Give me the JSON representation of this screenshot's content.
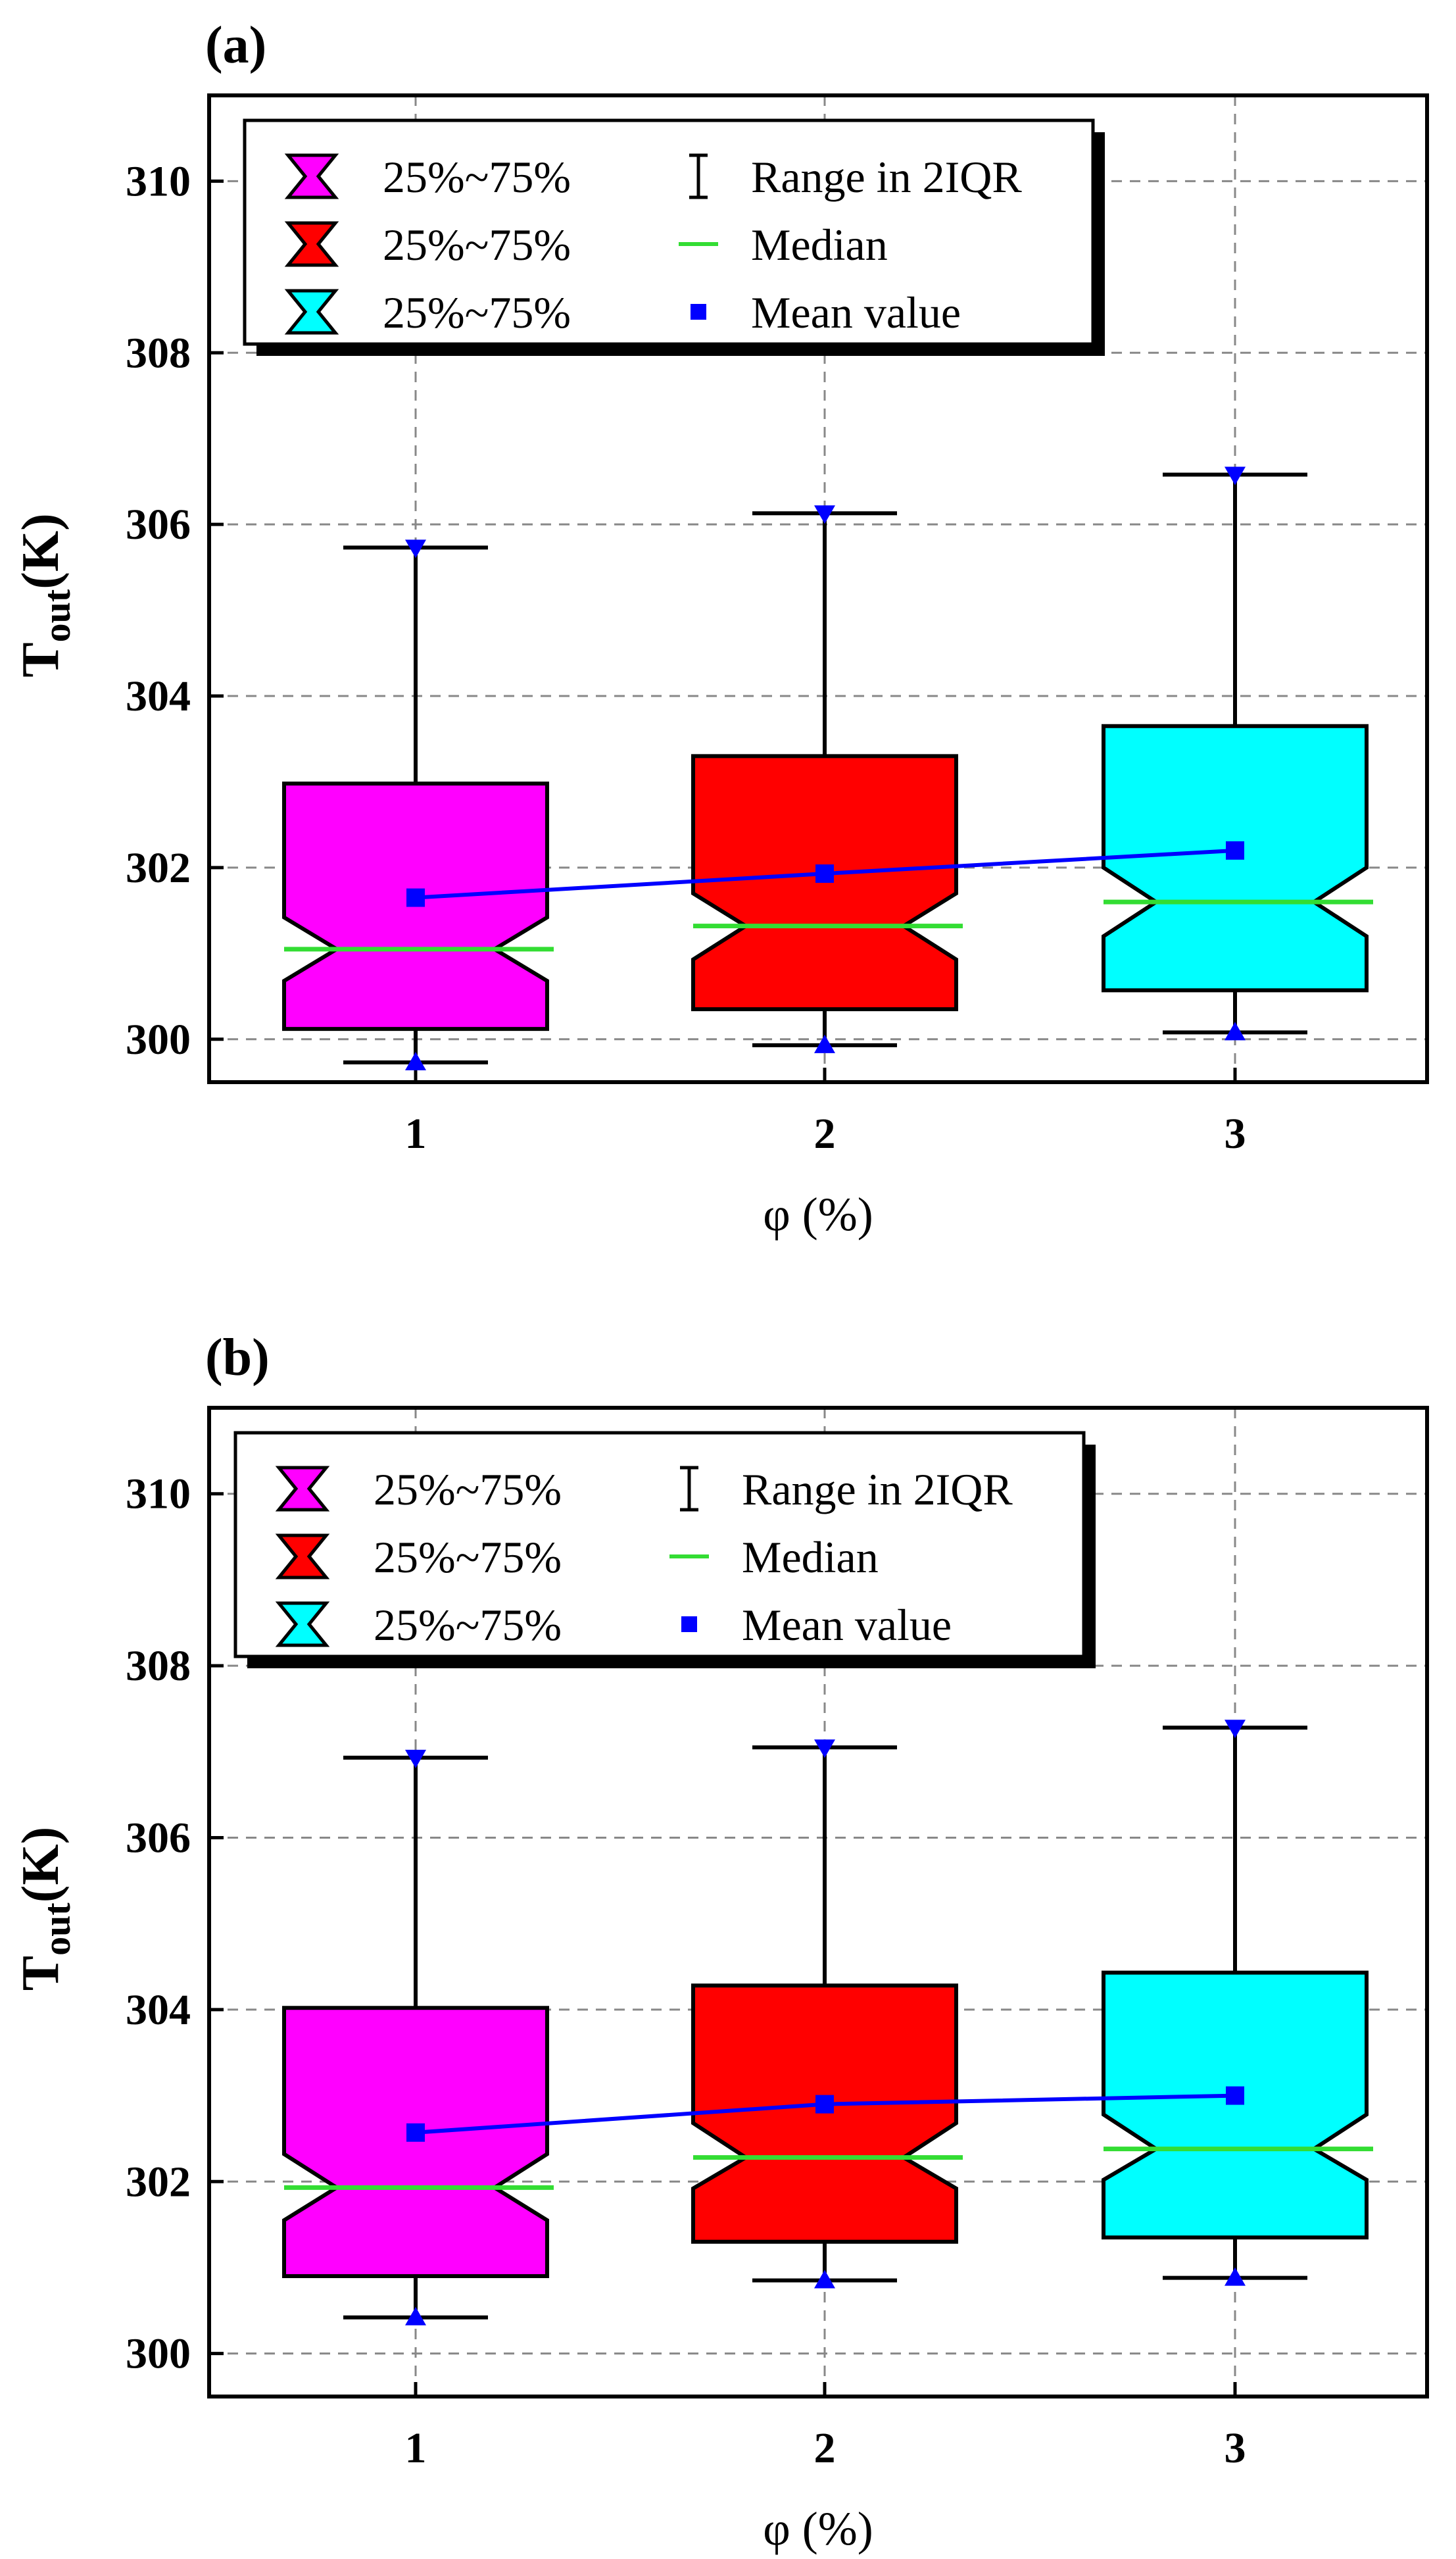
{
  "colors": {
    "box1": "#ff00ff",
    "box2": "#ff0000",
    "box3": "#00ffff",
    "median": "#33dd33",
    "mean": "#0000ff",
    "grid": "#888888",
    "frame": "#000000"
  },
  "legend": {
    "box_label": "25%~75%",
    "range_label": "Range in 2IQR",
    "median_label": "Median",
    "mean_label": "Mean value"
  },
  "chart_data": [
    {
      "type": "box",
      "panel_label": "(a)",
      "xlabel": "φ (%)",
      "ylabel_main": "T",
      "ylabel_sub": "out",
      "ylabel_unit": "(K)",
      "categories": [
        "1",
        "2",
        "3"
      ],
      "ylim": [
        299.5,
        311
      ],
      "yticks": [
        300,
        302,
        304,
        306,
        308,
        310
      ],
      "grid": true,
      "legend_position": "top-left",
      "boxes": [
        {
          "category": "1",
          "whisker_low": 299.73,
          "q1": 300.12,
          "median": 301.05,
          "q3": 302.98,
          "whisker_high": 305.73,
          "notch_low": 300.68,
          "notch_high": 301.42,
          "mean": 301.65
        },
        {
          "category": "2",
          "whisker_low": 299.93,
          "q1": 300.35,
          "median": 301.32,
          "q3": 303.3,
          "whisker_high": 306.13,
          "notch_low": 300.93,
          "notch_high": 301.7,
          "mean": 301.93
        },
        {
          "category": "3",
          "whisker_low": 300.08,
          "q1": 300.57,
          "median": 301.6,
          "q3": 303.65,
          "whisker_high": 306.58,
          "notch_low": 301.2,
          "notch_high": 302.0,
          "mean": 302.2
        }
      ]
    },
    {
      "type": "box",
      "panel_label": "(b)",
      "xlabel": "φ (%)",
      "ylabel_main": "T",
      "ylabel_sub": "out",
      "ylabel_unit": "(K)",
      "categories": [
        "1",
        "2",
        "3"
      ],
      "ylim": [
        299.5,
        311
      ],
      "yticks": [
        300,
        302,
        304,
        306,
        308,
        310
      ],
      "grid": true,
      "legend_position": "top-left",
      "boxes": [
        {
          "category": "1",
          "whisker_low": 300.42,
          "q1": 300.9,
          "median": 301.93,
          "q3": 304.02,
          "whisker_high": 306.93,
          "notch_low": 301.55,
          "notch_high": 302.32,
          "mean": 302.57
        },
        {
          "category": "2",
          "whisker_low": 300.85,
          "q1": 301.3,
          "median": 302.28,
          "q3": 304.28,
          "whisker_high": 307.05,
          "notch_low": 301.92,
          "notch_high": 302.68,
          "mean": 302.9
        },
        {
          "category": "3",
          "whisker_low": 300.88,
          "q1": 301.35,
          "median": 302.38,
          "q3": 304.43,
          "whisker_high": 307.28,
          "notch_low": 302.02,
          "notch_high": 302.78,
          "mean": 303.0
        }
      ]
    }
  ]
}
